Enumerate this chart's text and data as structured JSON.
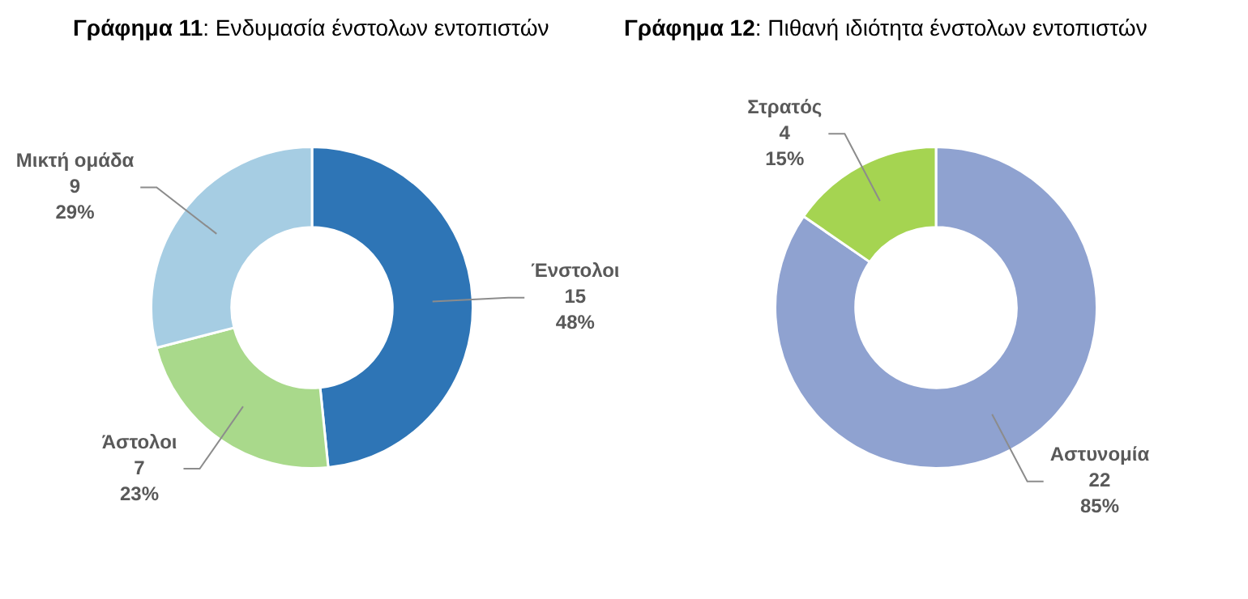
{
  "chart_data": [
    {
      "type": "donut",
      "title": "Γράφημα 11: Ενδυμασία ένστολων εντοπιστών",
      "categories": [
        "Ένστολοι",
        "Άστολοι",
        "Μικτή ομάδα"
      ],
      "values": [
        15,
        7,
        9
      ],
      "colors": [
        "#2e75b6",
        "#a9d98b",
        "#a6cde3"
      ],
      "value_labels": [
        "15\n48%",
        "7\n23%",
        "9\n29%"
      ],
      "legend": false
    },
    {
      "type": "donut",
      "title": "Γράφημα 12: Πιθανή ιδιότητα ένστολων εντοπιστών",
      "categories": [
        "Αστυνομία",
        "Στρατός"
      ],
      "values": [
        22,
        4
      ],
      "colors": [
        "#8fa2d0",
        "#a5d451"
      ],
      "value_labels": [
        "22\n85%",
        "4\n15%"
      ],
      "legend": false
    }
  ]
}
